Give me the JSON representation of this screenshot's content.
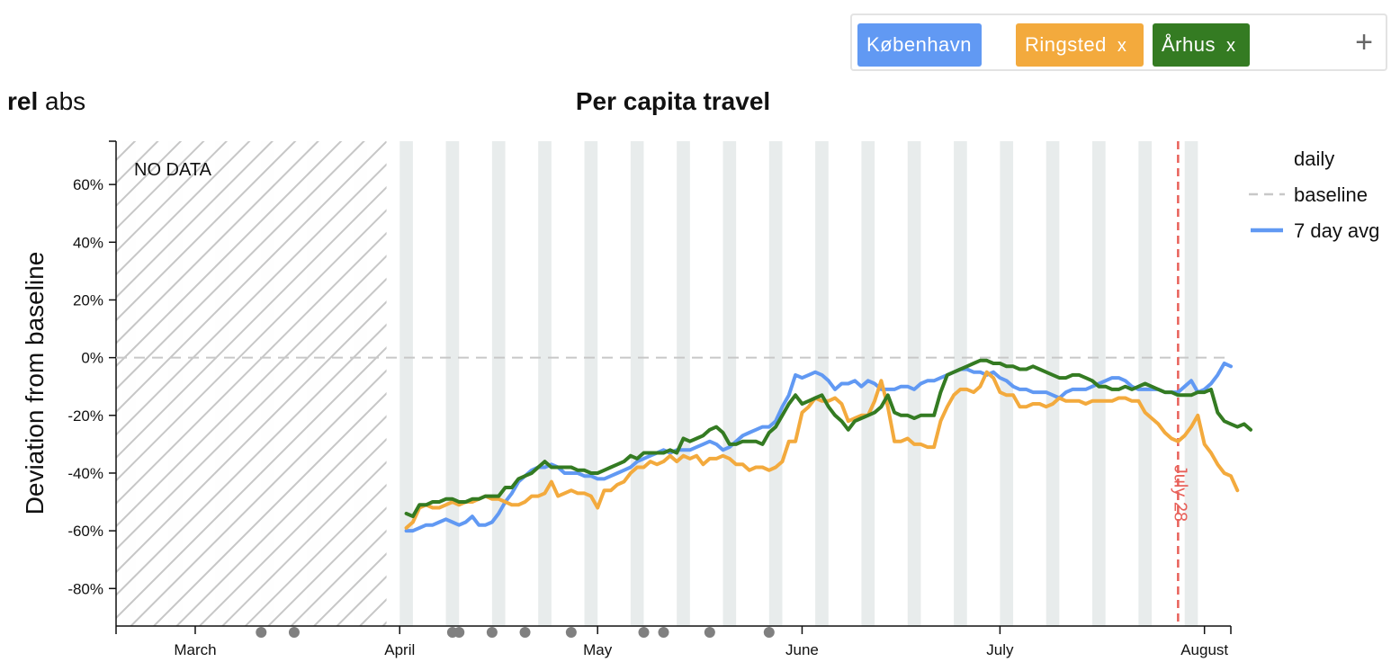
{
  "filters": {
    "chips": [
      {
        "label": "København",
        "close": "x",
        "color": "#6199f3"
      },
      {
        "label": "Ringsted",
        "close": "x",
        "color": "#f3aa3d"
      },
      {
        "label": "Århus",
        "close": "x",
        "color": "#347b22"
      }
    ],
    "add_label": "+"
  },
  "mode": {
    "rel": "rel",
    "abs": "abs"
  },
  "chart_data": {
    "type": "line",
    "title": "Per capita travel",
    "ylabel": "Deviation from baseline",
    "xlabel": "",
    "ylim": [
      -93,
      75
    ],
    "y_ticks": [
      60,
      40,
      20,
      0,
      -20,
      -40,
      -60,
      -80
    ],
    "y_tick_labels": [
      "60%",
      "40%",
      "20%",
      "0%",
      "-20%",
      "-40%",
      "-60%",
      "-80%"
    ],
    "x_ticks": [
      {
        "label": "March",
        "day": 12
      },
      {
        "label": "April",
        "day": 43
      },
      {
        "label": "May",
        "day": 73
      },
      {
        "label": "June",
        "day": 104
      },
      {
        "label": "July",
        "day": 134
      },
      {
        "label": "August",
        "day": 165
      }
    ],
    "no_data_label": "NO DATA",
    "no_data_range": [
      0,
      41
    ],
    "baseline_value": 0,
    "annotation": {
      "label": "July 28",
      "day": 161,
      "color": "#e8615a"
    },
    "event_markers": [
      22,
      27,
      51,
      52,
      57,
      62,
      69,
      80,
      83,
      90,
      99
    ],
    "legend": {
      "daily": "daily",
      "baseline": "baseline",
      "avg": "7 day avg"
    },
    "x_day0": "2020-02-29",
    "series": [
      {
        "name": "København",
        "color": "#6199f3",
        "x_start": 44,
        "values": [
          -60,
          -60,
          -59,
          -58,
          -58,
          -57,
          -56,
          -57,
          -58,
          -57,
          -55,
          -58,
          -58,
          -57,
          -54,
          -50,
          -47,
          -43,
          -41,
          -39,
          -38,
          -38,
          -37,
          -38,
          -40,
          -40,
          -40,
          -41,
          -41,
          -42,
          -42,
          -41,
          -40,
          -39,
          -38,
          -36,
          -35,
          -34,
          -33,
          -32,
          -33,
          -32,
          -32,
          -32,
          -31,
          -30,
          -29,
          -30,
          -32,
          -31,
          -29,
          -27,
          -26,
          -25,
          -24,
          -24,
          -22,
          -17,
          -13,
          -6,
          -7,
          -6,
          -5,
          -6,
          -8,
          -11,
          -9,
          -9,
          -8,
          -10,
          -8,
          -9,
          -11,
          -11,
          -11,
          -10,
          -10,
          -11,
          -9,
          -8,
          -8,
          -7,
          -6,
          -5,
          -4,
          -4,
          -5,
          -5,
          -6,
          -5,
          -7,
          -8,
          -10,
          -11,
          -11,
          -12,
          -12,
          -12,
          -13,
          -14,
          -12,
          -11,
          -11,
          -11,
          -10,
          -9,
          -8,
          -7,
          -7,
          -8,
          -10,
          -11,
          -11,
          -11,
          -11,
          -12,
          -12,
          -12,
          -10,
          -8,
          -12,
          -11,
          -9,
          -6,
          -2,
          -3
        ]
      },
      {
        "name": "Ringsted",
        "color": "#f3aa3d",
        "x_start": 44,
        "values": [
          -59,
          -57,
          -52,
          -51,
          -52,
          -52,
          -51,
          -50,
          -51,
          -50,
          -50,
          -49,
          -48,
          -49,
          -49,
          -50,
          -51,
          -51,
          -50,
          -48,
          -48,
          -47,
          -43,
          -48,
          -47,
          -46,
          -47,
          -47,
          -48,
          -52,
          -46,
          -46,
          -44,
          -43,
          -40,
          -38,
          -38,
          -36,
          -37,
          -36,
          -34,
          -36,
          -34,
          -35,
          -34,
          -37,
          -35,
          -35,
          -34,
          -35,
          -37,
          -37,
          -39,
          -38,
          -38,
          -39,
          -38,
          -36,
          -29,
          -29,
          -19,
          -17,
          -14,
          -15,
          -15,
          -14,
          -16,
          -22,
          -21,
          -20,
          -20,
          -15,
          -8,
          -17,
          -29,
          -29,
          -28,
          -30,
          -30,
          -31,
          -31,
          -22,
          -17,
          -13,
          -11,
          -11,
          -12,
          -10,
          -5,
          -7,
          -12,
          -13,
          -13,
          -17,
          -17,
          -16,
          -16,
          -17,
          -16,
          -14,
          -15,
          -15,
          -15,
          -16,
          -15,
          -15,
          -15,
          -15,
          -14,
          -14,
          -15,
          -15,
          -19,
          -21,
          -23,
          -26,
          -28,
          -29,
          -27,
          -24,
          -20,
          -30,
          -33,
          -37,
          -40,
          -41,
          -46
        ]
      },
      {
        "name": "Århus",
        "color": "#347b22",
        "x_start": 44,
        "values": [
          -54,
          -55,
          -51,
          -51,
          -50,
          -50,
          -49,
          -49,
          -50,
          -50,
          -49,
          -49,
          -48,
          -48,
          -48,
          -45,
          -45,
          -42,
          -41,
          -40,
          -38,
          -36,
          -38,
          -38,
          -38,
          -38,
          -39,
          -39,
          -40,
          -40,
          -39,
          -38,
          -37,
          -36,
          -34,
          -35,
          -33,
          -33,
          -33,
          -33,
          -32,
          -33,
          -28,
          -29,
          -28,
          -27,
          -25,
          -24,
          -26,
          -30,
          -30,
          -29,
          -29,
          -29,
          -30,
          -26,
          -24,
          -20,
          -16,
          -13,
          -16,
          -15,
          -14,
          -13,
          -17,
          -20,
          -22,
          -25,
          -22,
          -21,
          -20,
          -19,
          -17,
          -13,
          -19,
          -20,
          -20,
          -21,
          -20,
          -20,
          -20,
          -12,
          -6,
          -5,
          -4,
          -3,
          -2,
          -1,
          -1,
          -2,
          -2,
          -3,
          -3,
          -4,
          -4,
          -3,
          -4,
          -5,
          -6,
          -7,
          -7,
          -6,
          -6,
          -7,
          -8,
          -10,
          -10,
          -11,
          -11,
          -10,
          -11,
          -10,
          -9,
          -10,
          -11,
          -12,
          -12,
          -13,
          -13,
          -13,
          -12,
          -12,
          -11,
          -19,
          -22,
          -23,
          -24,
          -23,
          -25
        ]
      }
    ]
  }
}
